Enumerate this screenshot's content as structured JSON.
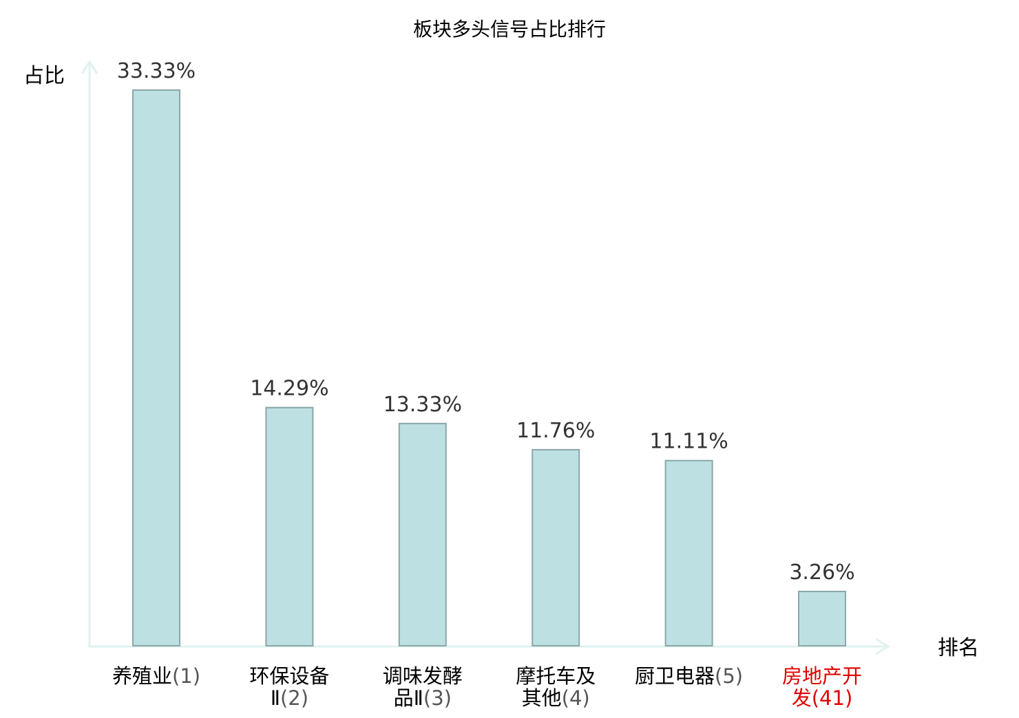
{
  "chart_data": {
    "type": "bar",
    "title": "板块多头信号占比排行",
    "ylabel": "占比",
    "xlabel": "排名",
    "categories": [
      {
        "line1": "养殖业",
        "line2": "",
        "rank": "(1)",
        "highlight": false
      },
      {
        "line1": "环保设备",
        "line2": "Ⅱ",
        "rank": "(2)",
        "highlight": false
      },
      {
        "line1": "调味发酵",
        "line2": "品Ⅱ",
        "rank": "(3)",
        "highlight": false
      },
      {
        "line1": "摩托车及",
        "line2": "其他",
        "rank": "(4)",
        "highlight": false
      },
      {
        "line1": "厨卫电器",
        "line2": "",
        "rank": "(5)",
        "highlight": false
      },
      {
        "line1": "房地产开",
        "line2": "发",
        "rank": "(41)",
        "highlight": true
      }
    ],
    "values": [
      33.33,
      14.29,
      13.33,
      11.76,
      11.11,
      3.26
    ],
    "value_labels": [
      "33.33%",
      "14.29%",
      "13.33%",
      "11.76%",
      "11.11%",
      "3.26%"
    ],
    "ylim": [
      0,
      33.33
    ],
    "grid": false,
    "legend": "none",
    "colors": {
      "bar_fill": "#bde0e3",
      "bar_stroke": "#8aa6a8",
      "axis": "#e0f2ef",
      "text": "#000000",
      "value_text": "#333333",
      "rank_text": "#555555",
      "highlight": "#e00000"
    }
  }
}
